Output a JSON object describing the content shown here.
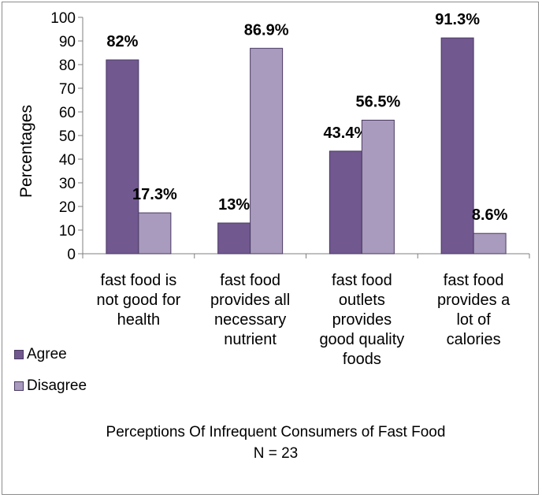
{
  "chart_data": {
    "type": "bar",
    "title": "Perceptions Of Infrequent Consumers of Fast Food",
    "subtitle": "N = 23",
    "xlabel": "",
    "ylabel": "Percentages",
    "ylim": [
      0,
      100
    ],
    "yticks": [
      "0",
      "10",
      "20",
      "30",
      "40",
      "50",
      "60",
      "70",
      "80",
      "90",
      "100"
    ],
    "grid": false,
    "legend_position": "left",
    "categories": [
      [
        "fast food is",
        "not good for",
        "health"
      ],
      [
        "fast food",
        "provides all",
        "necessary",
        "nutrient"
      ],
      [
        "fast food",
        "outlets",
        "provides",
        "good quality",
        "foods"
      ],
      [
        "fast food",
        "provides a",
        "lot of",
        "calories"
      ]
    ],
    "series": [
      {
        "name": "Agree",
        "color": "#71588f",
        "values": [
          82,
          13,
          43.4,
          91.3
        ],
        "labels": [
          "82%",
          "13%",
          "43.4%",
          "91.3%"
        ]
      },
      {
        "name": "Disagree",
        "color": "#a99bbd",
        "values": [
          17.3,
          86.9,
          56.5,
          8.6
        ],
        "labels": [
          "17.3%",
          "86.9%",
          "56.5%",
          "8.6%"
        ]
      }
    ]
  }
}
